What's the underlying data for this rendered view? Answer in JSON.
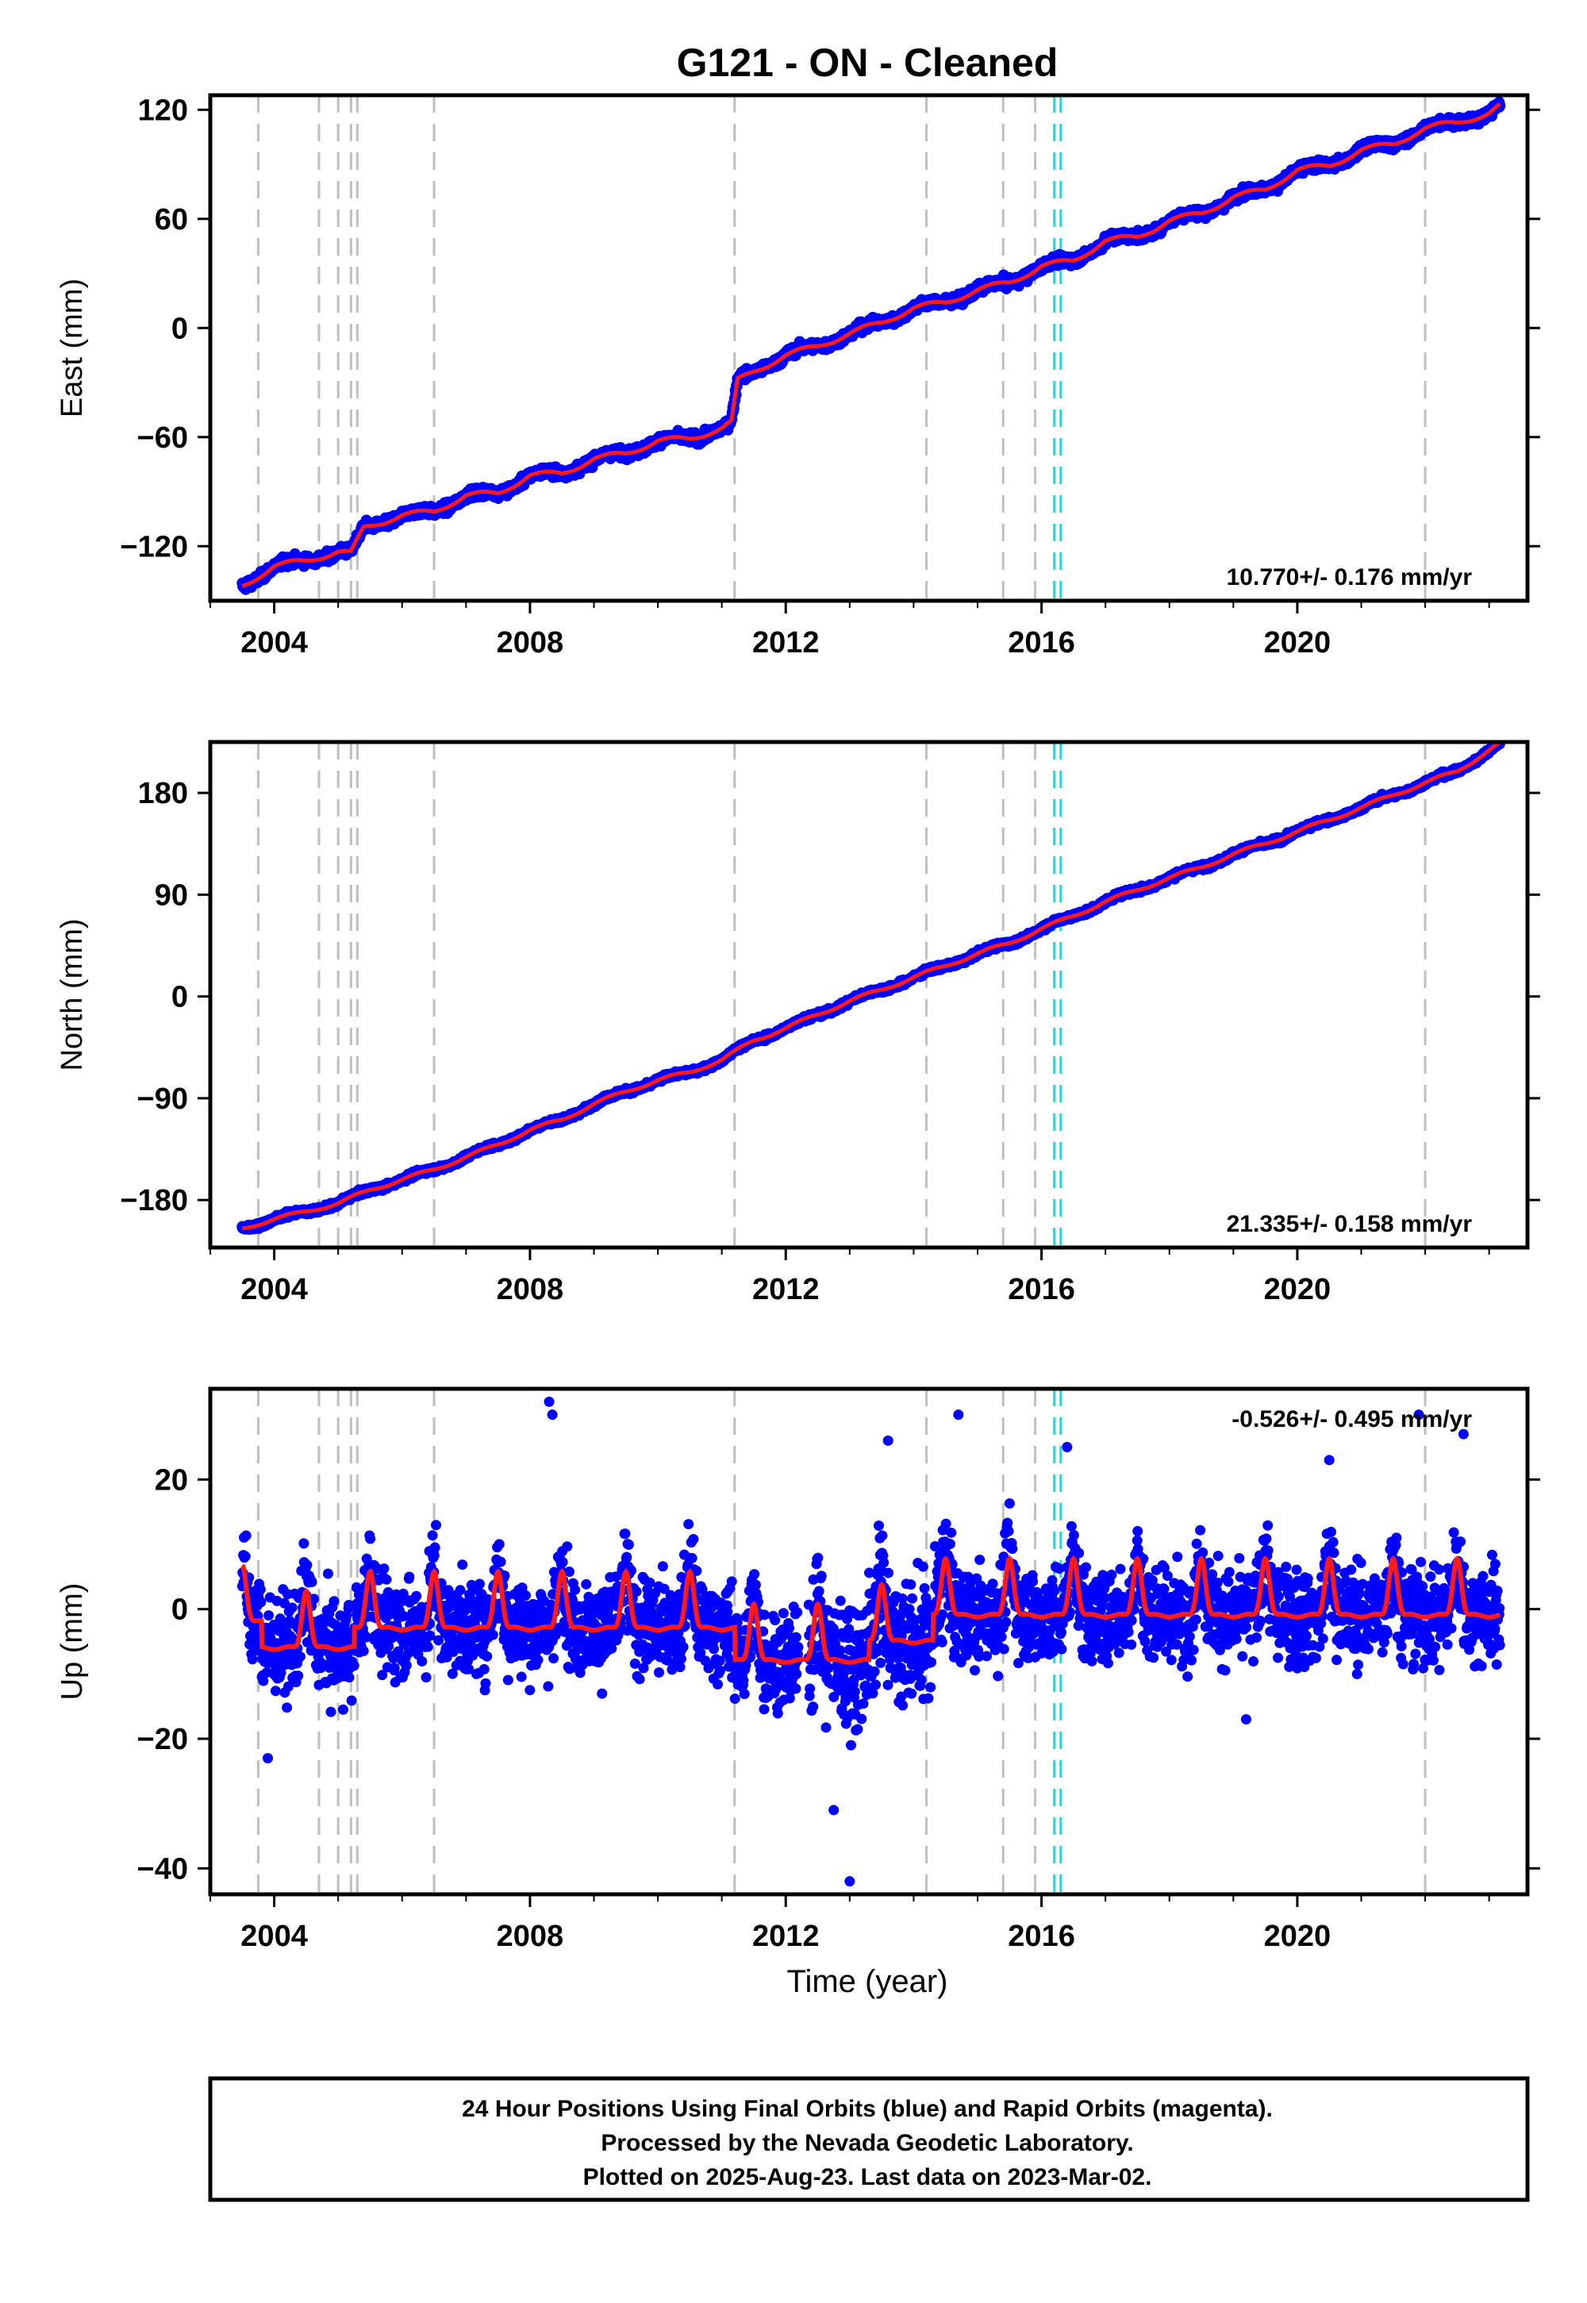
{
  "figure": {
    "title": "G121  - ON - Cleaned",
    "x_axis_label": "Time (year)",
    "caption_lines": [
      "24 Hour Positions Using Final Orbits (blue) and Rapid Orbits (magenta).",
      "Processed by the Nevada Geodetic Laboratory.",
      "Plotted on 2025-Aug-23. Last data on 2023-Mar-02."
    ],
    "colors": {
      "final_orbits": "#0000ff",
      "rapid_orbits": "#ff00ff",
      "model": "#ff1a1a",
      "event_line": "#bfbfbf",
      "antenna_change": "#00e5e5"
    }
  },
  "chart_data": [
    {
      "type": "scatter",
      "component": "east",
      "ylabel": "East (mm)",
      "rate_label": "10.770+/- 0.176 mm/yr",
      "xlim": [
        2003.0,
        2023.6
      ],
      "ylim": [
        -150,
        128
      ],
      "xticks": [
        2004,
        2008,
        2012,
        2016,
        2020
      ],
      "yticks": [
        -120,
        -60,
        0,
        60,
        120
      ],
      "event_lines": [
        2003.75,
        2004.7,
        2005.0,
        2005.2,
        2005.3,
        2006.5,
        2011.2,
        2014.2,
        2015.4,
        2015.9
      ],
      "event_lines_late": [
        2022.0
      ],
      "antenna_changes": [
        2016.2,
        2016.3
      ],
      "x": [
        2003.5,
        2004.0,
        2004.5,
        2005.0,
        2005.2,
        2005.4,
        2006.0,
        2006.5,
        2007.0,
        2007.5,
        2008.0,
        2008.5,
        2009.0,
        2009.5,
        2010.0,
        2010.5,
        2011.0,
        2011.15,
        2011.25,
        2011.5,
        2012.0,
        2012.5,
        2013.0,
        2013.5,
        2014.0,
        2014.5,
        2015.0,
        2015.5,
        2016.0,
        2016.5,
        2017.0,
        2017.5,
        2018.0,
        2018.5,
        2019.0,
        2019.5,
        2020.0,
        2020.5,
        2021.0,
        2021.5,
        2022.0,
        2022.5,
        2023.0,
        2023.17
      ],
      "y": [
        -142,
        -131,
        -128,
        -123,
        -124,
        -110,
        -103,
        -101,
        -92,
        -91,
        -81,
        -80,
        -72,
        -69,
        -62,
        -61,
        -55,
        -52,
        -29,
        -24,
        -15,
        -10,
        -3,
        3,
        11,
        14,
        21,
        25,
        34,
        37,
        48,
        50,
        59,
        63,
        72,
        76,
        87,
        89,
        98,
        101,
        110,
        113,
        118,
        122
      ],
      "scatter_spread": 3.0
    },
    {
      "type": "scatter",
      "component": "north",
      "ylabel": "North (mm)",
      "rate_label": "21.335+/- 0.158 mm/yr",
      "xlim": [
        2003.0,
        2023.6
      ],
      "ylim": [
        -222,
        225
      ],
      "xticks": [
        2004,
        2008,
        2012,
        2016,
        2020
      ],
      "yticks": [
        -180,
        -90,
        0,
        90,
        180
      ],
      "event_lines": [
        2003.75,
        2004.7,
        2005.0,
        2005.2,
        2005.3,
        2006.5,
        2011.2,
        2014.2,
        2015.4,
        2015.9
      ],
      "event_lines_late": [
        2022.0
      ],
      "antenna_changes": [
        2016.2,
        2016.3
      ],
      "x": [
        2003.5,
        2004.0,
        2004.5,
        2005.0,
        2005.5,
        2006.0,
        2006.5,
        2007.0,
        2007.5,
        2008.0,
        2008.5,
        2009.0,
        2009.5,
        2010.0,
        2010.5,
        2011.0,
        2011.5,
        2012.0,
        2012.5,
        2013.0,
        2013.5,
        2014.0,
        2014.5,
        2015.0,
        2015.5,
        2016.0,
        2016.5,
        2017.0,
        2017.5,
        2018.0,
        2018.5,
        2019.0,
        2019.5,
        2020.0,
        2020.5,
        2021.0,
        2021.5,
        2022.0,
        2022.5,
        2023.17
      ],
      "y": [
        -205,
        -197,
        -190,
        -183,
        -171,
        -162,
        -153,
        -142,
        -131,
        -118,
        -109,
        -95,
        -84,
        -74,
        -67,
        -56,
        -39,
        -28,
        -16,
        -4,
        6,
        17,
        27,
        38,
        47,
        60,
        71,
        84,
        94,
        105,
        114,
        126,
        135,
        146,
        156,
        167,
        178,
        189,
        199,
        224
      ],
      "scatter_spread": 2.5
    },
    {
      "type": "scatter",
      "component": "up",
      "ylabel": "Up (mm)",
      "rate_label": "-0.526+/- 0.495 mm/yr",
      "xlim": [
        2003.0,
        2023.6
      ],
      "ylim": [
        -44,
        34
      ],
      "xticks": [
        2004,
        2008,
        2012,
        2016,
        2020
      ],
      "yticks": [
        -40,
        -20,
        0,
        20
      ],
      "event_lines": [
        2003.75,
        2004.7,
        2005.0,
        2005.2,
        2005.3,
        2006.5,
        2011.2,
        2014.2,
        2015.4,
        2015.9
      ],
      "event_lines_late": [
        2022.0
      ],
      "antenna_changes": [
        2016.2,
        2016.3
      ],
      "seasonal": {
        "start": 2003.5,
        "end": 2023.17,
        "peak_phase": 0.5,
        "amplitude": 9.0,
        "sharpness": 6,
        "segments": [
          {
            "from": 2003.5,
            "to": 2003.8,
            "base": -2
          },
          {
            "from": 2003.8,
            "to": 2005.25,
            "base": -6
          },
          {
            "from": 2005.25,
            "to": 2011.2,
            "base": -3
          },
          {
            "from": 2011.2,
            "to": 2013.3,
            "base": -8
          },
          {
            "from": 2013.3,
            "to": 2014.3,
            "base": -5
          },
          {
            "from": 2014.3,
            "to": 2023.17,
            "base": -1
          }
        ]
      },
      "scatter_spread": 5.0,
      "outliers": [
        {
          "x": 2008.3,
          "y": 32
        },
        {
          "x": 2008.35,
          "y": 30
        },
        {
          "x": 2013.0,
          "y": -42
        },
        {
          "x": 2003.9,
          "y": -23
        },
        {
          "x": 2012.75,
          "y": -31
        },
        {
          "x": 2014.7,
          "y": 30
        },
        {
          "x": 2021.9,
          "y": 30
        },
        {
          "x": 2022.6,
          "y": 27
        },
        {
          "x": 2019.2,
          "y": -17
        },
        {
          "x": 2013.6,
          "y": 26
        },
        {
          "x": 2016.4,
          "y": 25
        },
        {
          "x": 2020.5,
          "y": 23
        }
      ]
    }
  ]
}
